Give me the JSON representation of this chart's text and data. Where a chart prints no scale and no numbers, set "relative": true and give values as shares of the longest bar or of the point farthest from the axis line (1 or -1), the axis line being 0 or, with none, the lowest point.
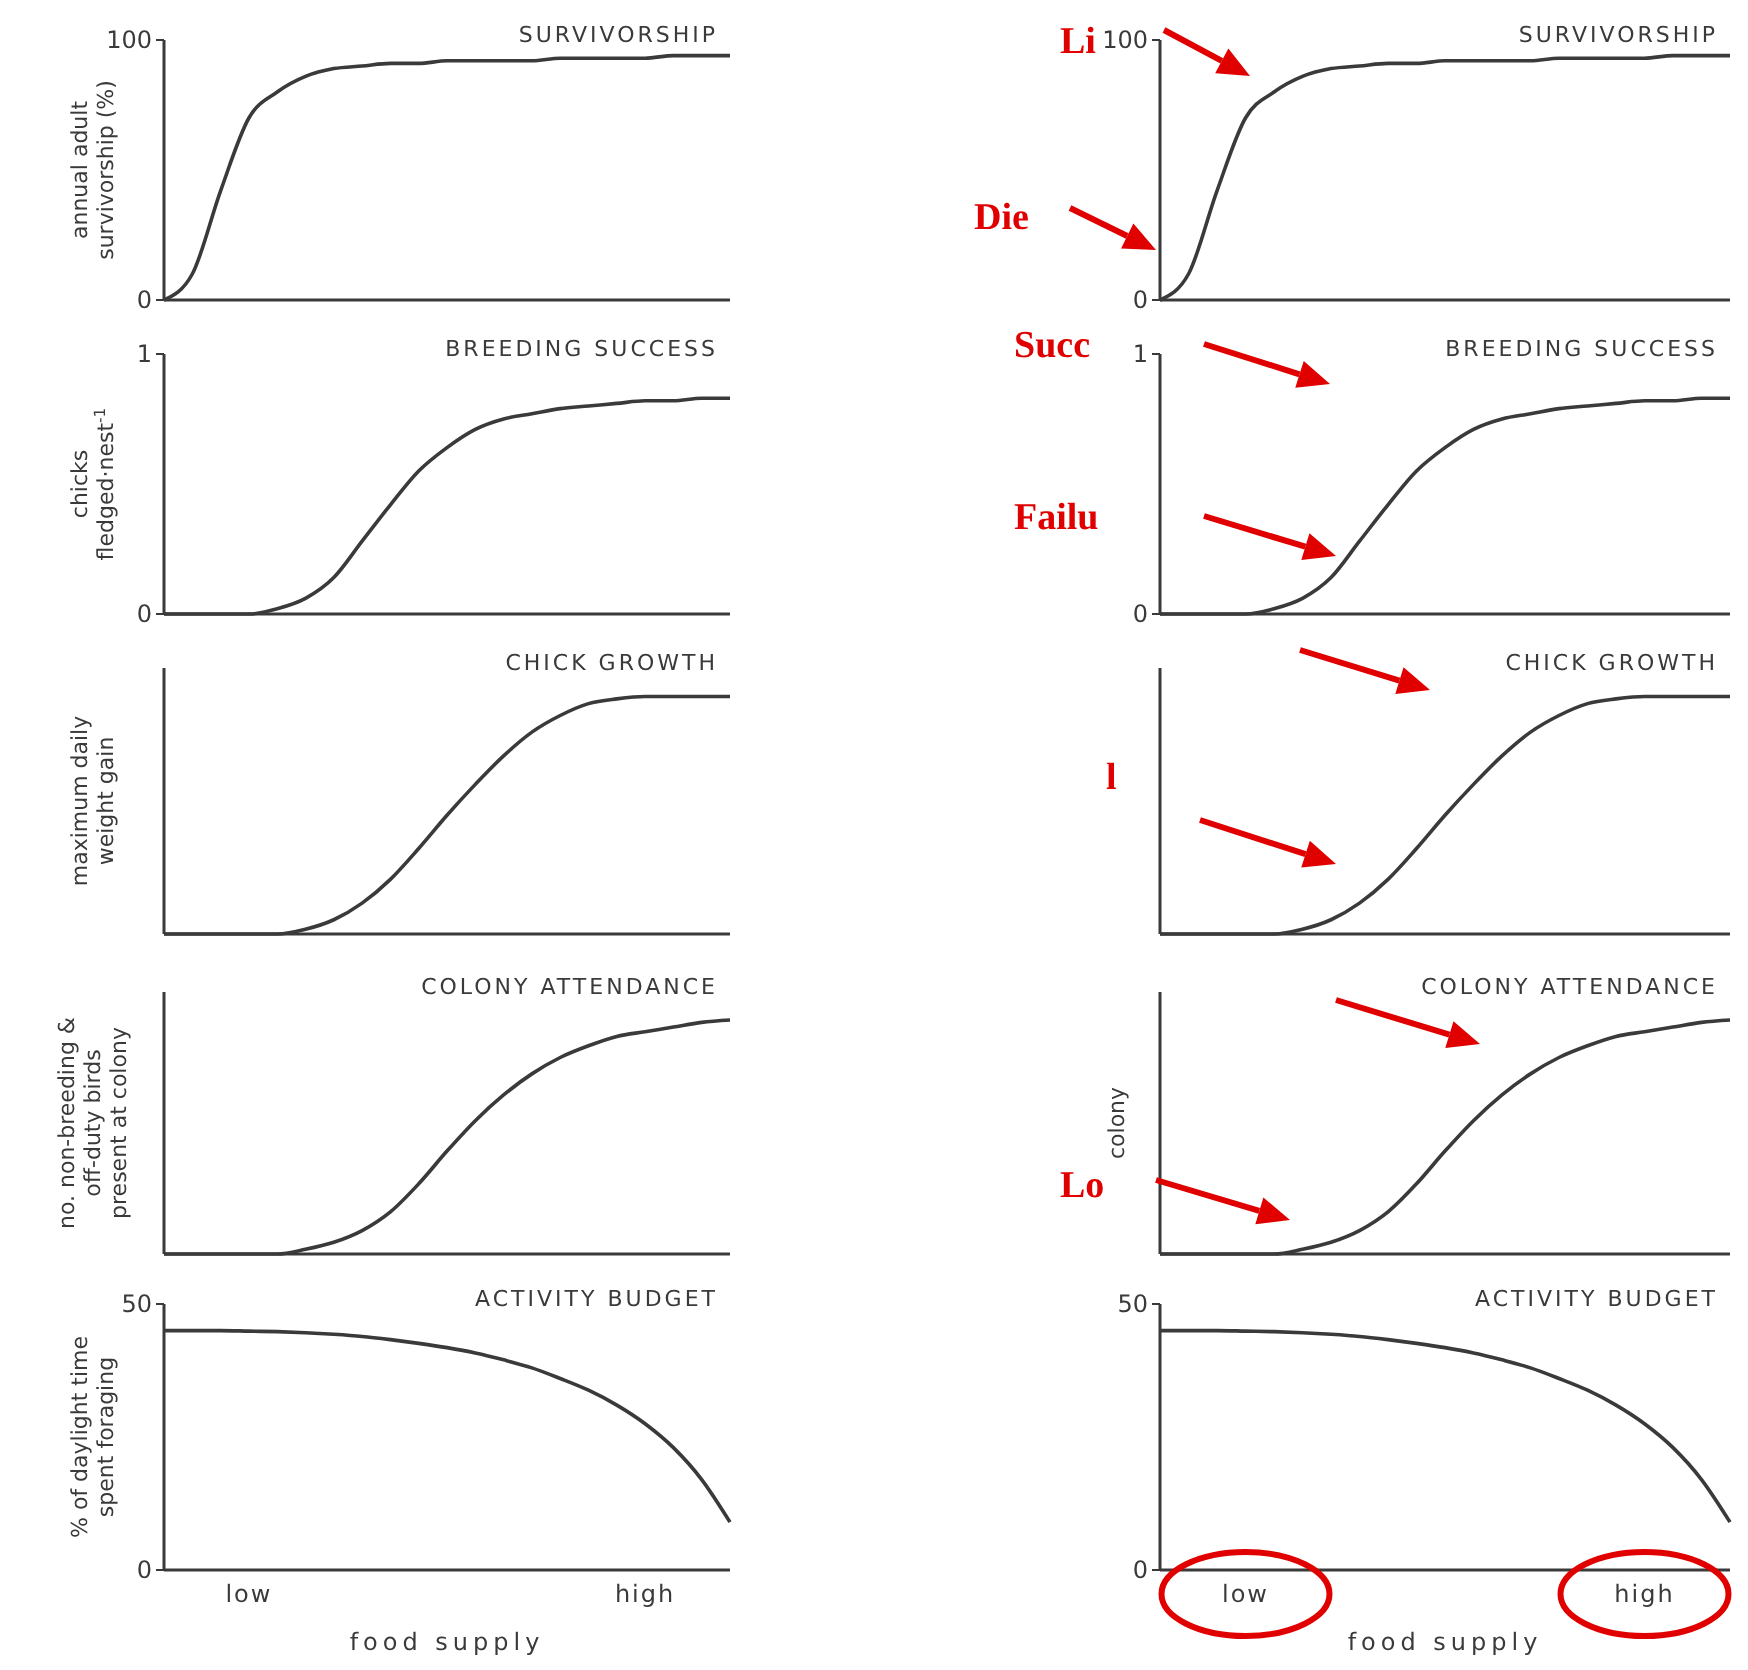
{
  "chart_data": [
    {
      "type": "line",
      "title": "SURVIVORSHIP",
      "ylabel": "annual adult survivorship (%)",
      "categories": [
        null,
        null,
        null,
        null,
        null,
        null,
        null,
        null,
        null,
        null,
        null,
        null,
        null,
        null,
        null,
        null,
        null,
        null,
        null,
        null,
        null
      ],
      "series": [
        {
          "color": "#3a3a3a",
          "values": [
            0,
            10,
            42,
            70,
            80,
            86,
            89,
            90,
            91,
            91,
            92,
            92,
            92,
            92,
            93,
            93,
            93,
            93,
            94,
            94,
            94
          ]
        }
      ],
      "ylim": [
        0,
        100
      ],
      "yticks": [
        0,
        100
      ],
      "tick_labels": "y"
    },
    {
      "type": "line",
      "title": "SURVIVORSHIP",
      "categories": [
        null,
        null,
        null,
        null,
        null,
        null,
        null,
        null,
        null,
        null,
        null,
        null,
        null,
        null,
        null,
        null,
        null,
        null,
        null,
        null,
        null
      ],
      "series": [
        {
          "color": "#3a3a3a",
          "values": [
            0,
            10,
            42,
            70,
            80,
            86,
            89,
            90,
            91,
            91,
            92,
            92,
            92,
            92,
            93,
            93,
            93,
            93,
            94,
            94,
            94
          ]
        }
      ],
      "ylim": [
        0,
        100
      ],
      "yticks": [
        0,
        100
      ],
      "tick_labels": "y",
      "annotations": [
        "Li",
        "Die"
      ]
    },
    {
      "type": "line",
      "title": "BREEDING SUCCESS",
      "ylabel": "chicks fledged·nest$^{-1}$",
      "categories": [
        null,
        null,
        null,
        null,
        null,
        null,
        null,
        null,
        null,
        null,
        null,
        null,
        null,
        null,
        null,
        null,
        null,
        null,
        null,
        null,
        null
      ],
      "series": [
        {
          "color": "#3a3a3a",
          "values": [
            0,
            0,
            0,
            0,
            0.02,
            0.06,
            0.14,
            0.28,
            0.42,
            0.55,
            0.64,
            0.71,
            0.75,
            0.77,
            0.79,
            0.8,
            0.81,
            0.82,
            0.82,
            0.83,
            0.83
          ]
        }
      ],
      "ylim": [
        0,
        1
      ],
      "yticks": [
        0,
        1
      ],
      "tick_labels": "y"
    },
    {
      "type": "line",
      "title": "BREEDING SUCCESS",
      "categories": [
        null,
        null,
        null,
        null,
        null,
        null,
        null,
        null,
        null,
        null,
        null,
        null,
        null,
        null,
        null,
        null,
        null,
        null,
        null,
        null,
        null
      ],
      "series": [
        {
          "color": "#3a3a3a",
          "values": [
            0,
            0,
            0,
            0,
            0.02,
            0.06,
            0.14,
            0.28,
            0.42,
            0.55,
            0.64,
            0.71,
            0.75,
            0.77,
            0.79,
            0.8,
            0.81,
            0.82,
            0.82,
            0.83,
            0.83
          ]
        }
      ],
      "ylim": [
        0,
        1
      ],
      "yticks": [
        0,
        1
      ],
      "tick_labels": "y",
      "annotations": [
        "Succ",
        "Failu"
      ]
    },
    {
      "type": "line",
      "title": "CHICK GROWTH",
      "ylabel": "maximum daily weight gain",
      "relative": true,
      "categories": [
        null,
        null,
        null,
        null,
        null,
        null,
        null,
        null,
        null,
        null,
        null,
        null,
        null,
        null,
        null,
        null,
        null,
        null,
        null,
        null,
        null
      ],
      "series": [
        {
          "color": "#3a3a3a",
          "values": [
            0,
            0,
            0,
            0,
            0,
            0.02,
            0.06,
            0.13,
            0.23,
            0.36,
            0.5,
            0.63,
            0.75,
            0.85,
            0.92,
            0.97,
            0.99,
            1,
            1,
            1,
            1
          ]
        }
      ],
      "tick_labels": false
    },
    {
      "type": "line",
      "title": "CHICK GROWTH",
      "relative": true,
      "categories": [
        null,
        null,
        null,
        null,
        null,
        null,
        null,
        null,
        null,
        null,
        null,
        null,
        null,
        null,
        null,
        null,
        null,
        null,
        null,
        null,
        null
      ],
      "series": [
        {
          "color": "#3a3a3a",
          "values": [
            0,
            0,
            0,
            0,
            0,
            0.02,
            0.06,
            0.13,
            0.23,
            0.36,
            0.5,
            0.63,
            0.75,
            0.85,
            0.92,
            0.97,
            0.99,
            1,
            1,
            1,
            1
          ]
        }
      ],
      "tick_labels": false,
      "annotations": [
        "l"
      ]
    },
    {
      "type": "line",
      "title": "COLONY ATTENDANCE",
      "ylabel": "no. non-breeding & off-duty birds present at colony",
      "relative": true,
      "categories": [
        null,
        null,
        null,
        null,
        null,
        null,
        null,
        null,
        null,
        null,
        null,
        null,
        null,
        null,
        null,
        null,
        null,
        null,
        null,
        null,
        null
      ],
      "series": [
        {
          "color": "#3a3a3a",
          "values": [
            0,
            0,
            0,
            0,
            0,
            0.02,
            0.05,
            0.1,
            0.18,
            0.3,
            0.44,
            0.57,
            0.68,
            0.77,
            0.84,
            0.89,
            0.93,
            0.95,
            0.97,
            0.99,
            1
          ]
        }
      ],
      "tick_labels": false
    },
    {
      "type": "line",
      "title": "COLONY ATTENDANCE",
      "ylabel": "colony",
      "relative": true,
      "categories": [
        null,
        null,
        null,
        null,
        null,
        null,
        null,
        null,
        null,
        null,
        null,
        null,
        null,
        null,
        null,
        null,
        null,
        null,
        null,
        null,
        null
      ],
      "series": [
        {
          "color": "#3a3a3a",
          "values": [
            0,
            0,
            0,
            0,
            0,
            0.02,
            0.05,
            0.1,
            0.18,
            0.3,
            0.44,
            0.57,
            0.68,
            0.77,
            0.84,
            0.89,
            0.93,
            0.95,
            0.97,
            0.99,
            1
          ]
        }
      ],
      "tick_labels": false,
      "annotations": [
        "Lo"
      ]
    },
    {
      "type": "line",
      "title": "ACTIVITY BUDGET",
      "ylabel": "% of daylight time spent foraging",
      "xlabel": "food supply",
      "categories": [
        null,
        null,
        null,
        "low",
        null,
        null,
        null,
        null,
        null,
        null,
        null,
        null,
        null,
        null,
        null,
        null,
        null,
        "high",
        null,
        null,
        null
      ],
      "series": [
        {
          "color": "#3a3a3a",
          "values": [
            45,
            45,
            45,
            44.9,
            44.8,
            44.6,
            44.3,
            43.9,
            43.3,
            42.6,
            41.8,
            40.8,
            39.5,
            38,
            36,
            33.8,
            31,
            27.5,
            23,
            17,
            9
          ]
        }
      ],
      "ylim": [
        0,
        50
      ],
      "yticks": [
        0,
        50
      ]
    },
    {
      "type": "line",
      "title": "ACTIVITY BUDGET",
      "xlabel": "food supply",
      "categories": [
        null,
        null,
        null,
        "low",
        null,
        null,
        null,
        null,
        null,
        null,
        null,
        null,
        null,
        null,
        null,
        null,
        null,
        "high",
        null,
        null,
        null
      ],
      "series": [
        {
          "color": "#3a3a3a",
          "values": [
            45,
            45,
            45,
            44.9,
            44.8,
            44.6,
            44.3,
            43.9,
            43.3,
            42.6,
            41.8,
            40.8,
            39.5,
            38,
            36,
            33.8,
            31,
            27.5,
            23,
            17,
            9
          ]
        }
      ],
      "ylim": [
        0,
        50
      ],
      "yticks": [
        0,
        50
      ]
    }
  ]
}
